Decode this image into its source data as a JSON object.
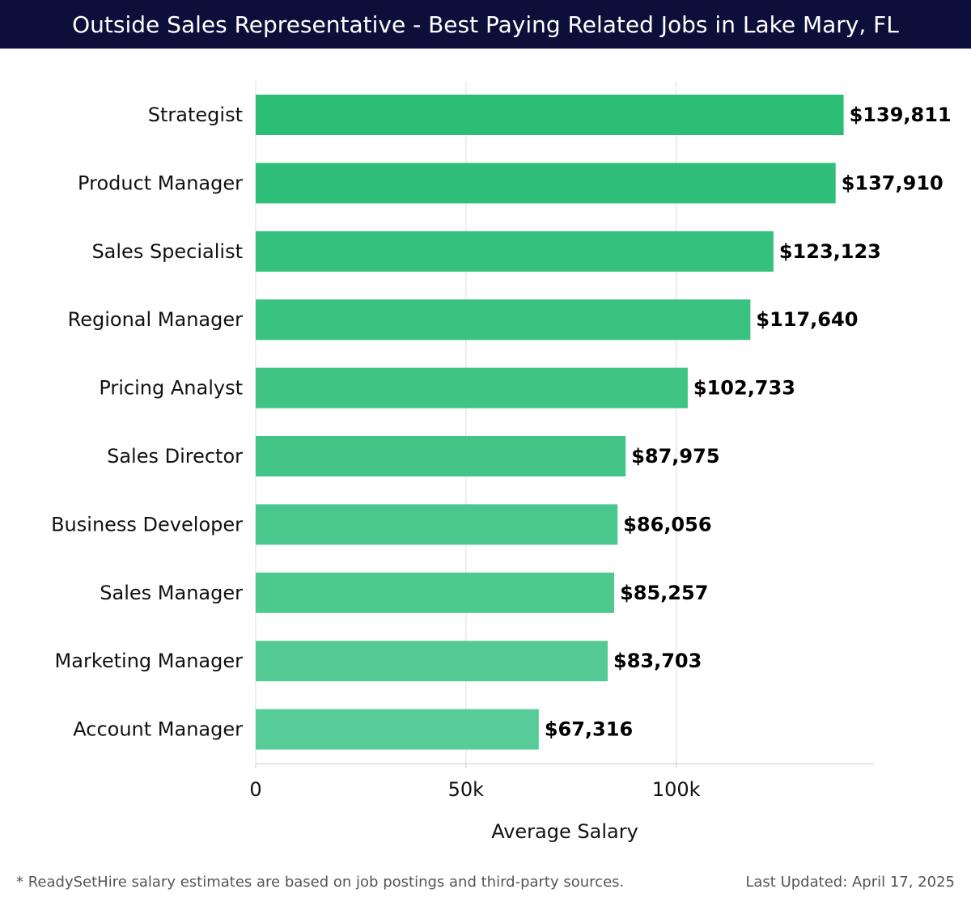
{
  "header": {
    "title": "Outside Sales Representative - Best Paying Related Jobs in Lake Mary, FL"
  },
  "footer": {
    "note": "* ReadySetHire salary estimates are based on job postings and third-party sources.",
    "updated": "Last Updated: April 17, 2025"
  },
  "chart_data": {
    "type": "bar",
    "orientation": "horizontal",
    "title": "Outside Sales Representative - Best Paying Related Jobs in Lake Mary, FL",
    "xlabel": "Average Salary",
    "ylabel": "",
    "categories": [
      "Strategist",
      "Product Manager",
      "Sales Specialist",
      "Regional Manager",
      "Pricing Analyst",
      "Sales Director",
      "Business Developer",
      "Sales Manager",
      "Marketing Manager",
      "Account Manager"
    ],
    "values": [
      139811,
      137910,
      123123,
      117640,
      102733,
      87975,
      86056,
      85257,
      83703,
      67316
    ],
    "value_labels": [
      "$139,811",
      "$137,910",
      "$123,123",
      "$117,640",
      "$102,733",
      "$87,975",
      "$86,056",
      "$85,257",
      "$83,703",
      "$67,316"
    ],
    "xticks": [
      0,
      50000,
      100000
    ],
    "xtick_labels": [
      "0",
      "50k",
      "100k"
    ],
    "xlim": [
      0,
      147000
    ],
    "grid": true,
    "colors": {
      "bar_top": "#2bbd74",
      "bar_bottom": "#58cc98",
      "grid": "#dddddd",
      "axis": "#cccccc"
    }
  }
}
